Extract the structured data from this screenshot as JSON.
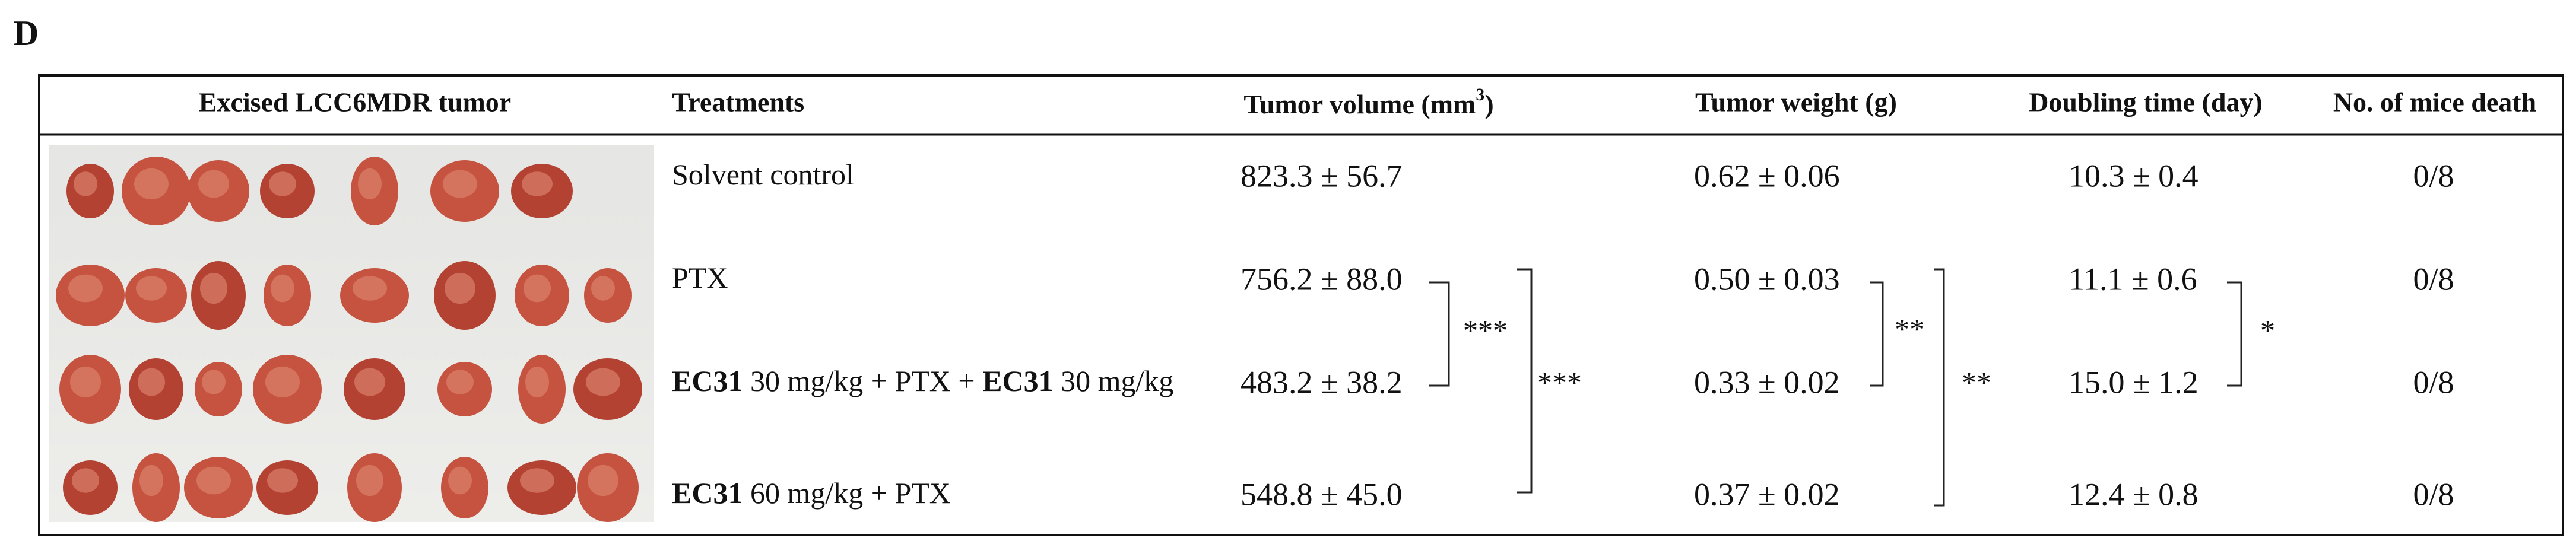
{
  "header": {
    "panel_label": "D"
  },
  "table": {
    "columns": [
      "Excised LCC6MDR tumor",
      "Treatments",
      {
        "text": "Tumor volume (mm",
        "sup": "3",
        "after": ")"
      },
      "Tumor weight (g)",
      "Doubling time (day)",
      "No. of mice death"
    ],
    "rows": [
      {
        "treatment": [
          {
            "text": "Solvent control",
            "bold": false
          }
        ],
        "volume": "823.3 ± 56.7",
        "weight": "0.62 ± 0.06",
        "doubling": "10.3 ± 0.4",
        "death": "0/8"
      },
      {
        "treatment": [
          {
            "text": "PTX",
            "bold": false
          }
        ],
        "volume": "756.2 ± 88.0",
        "weight": "0.50 ± 0.03",
        "doubling": "11.1 ± 0.6",
        "death": "0/8"
      },
      {
        "treatment": [
          {
            "text": "EC31",
            "bold": true
          },
          {
            "text": " 30 mg/kg + PTX + ",
            "bold": false
          },
          {
            "text": "EC31",
            "bold": true
          },
          {
            "text": " 30 mg/kg",
            "bold": false
          }
        ],
        "volume": "483.2 ± 38.2",
        "weight": "0.33 ± 0.02",
        "doubling": "15.0 ± 1.2",
        "death": "0/8"
      },
      {
        "treatment": [
          {
            "text": "EC31",
            "bold": true
          },
          {
            "text": " 60 mg/kg + PTX",
            "bold": false
          }
        ],
        "volume": "548.8 ± 45.0",
        "weight": "0.37 ± 0.02",
        "doubling": "12.4 ± 0.8",
        "death": "0/8"
      }
    ],
    "significance": [
      "***",
      "***",
      "**",
      "**",
      "*"
    ]
  }
}
